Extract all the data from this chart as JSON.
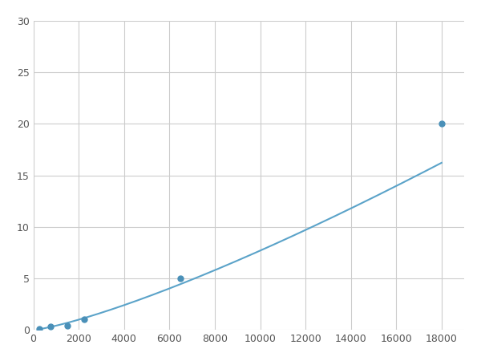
{
  "x": [
    250,
    750,
    1500,
    2250,
    6500,
    18000
  ],
  "y": [
    0.1,
    0.3,
    0.4,
    1.0,
    5.0,
    20.0
  ],
  "line_color": "#5ba3c9",
  "marker_color": "#4a90b8",
  "marker_size": 5,
  "xlim": [
    0,
    19000
  ],
  "ylim": [
    0,
    30
  ],
  "xticks": [
    0,
    2000,
    4000,
    6000,
    8000,
    10000,
    12000,
    14000,
    16000,
    18000
  ],
  "yticks": [
    0,
    5,
    10,
    15,
    20,
    25,
    30
  ],
  "grid_color": "#cccccc",
  "bg_color": "#ffffff",
  "line_width": 1.5
}
